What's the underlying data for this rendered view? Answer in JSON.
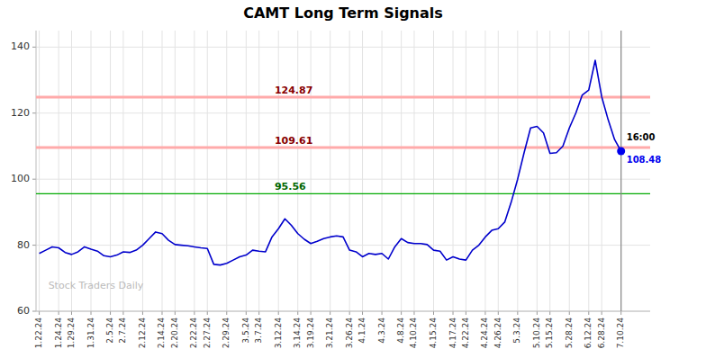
{
  "chart_data": {
    "type": "line",
    "title": "CAMT Long Term Signals",
    "color": "#0000cc",
    "ylim": [
      60,
      145
    ],
    "yticks": [
      60,
      80,
      100,
      120,
      140
    ],
    "grid": true,
    "categories": [
      "1.22.24",
      null,
      null,
      "1.24.24",
      null,
      "1.29.24",
      null,
      null,
      "1.31.24",
      null,
      null,
      "2.5.24",
      null,
      "2.7.24",
      null,
      null,
      "2.12.24",
      null,
      null,
      "2.14.24",
      null,
      "2.20.24",
      null,
      null,
      "2.22.24",
      null,
      "2.27.24",
      null,
      null,
      "2.29.24",
      null,
      null,
      "3.5.24",
      null,
      "3.7.24",
      null,
      null,
      "3.12.24",
      null,
      null,
      "3.14.24",
      null,
      "3.19.24",
      null,
      null,
      "3.21.24",
      null,
      null,
      "3.26.24",
      null,
      "4.1.24",
      null,
      null,
      "4.3.24",
      null,
      null,
      "4.8.24",
      null,
      "4.10.24",
      null,
      null,
      "4.15.24",
      null,
      null,
      "4.17.24",
      null,
      "4.22.24",
      null,
      null,
      "4.24.24",
      null,
      "4.26.24",
      null,
      null,
      "5.3.24",
      null,
      null,
      "5.10.24",
      null,
      "5.15.24",
      null,
      null,
      "5.28.24",
      null,
      null,
      "6.12.24",
      null,
      "6.28.24",
      null,
      null,
      "7.10.24"
    ],
    "values": [
      77.5,
      78.5,
      79.5,
      79.2,
      77.8,
      77.2,
      78.0,
      79.5,
      78.8,
      78.2,
      76.8,
      76.5,
      77.0,
      78.0,
      77.8,
      78.5,
      80.0,
      82.0,
      84.0,
      83.5,
      81.5,
      80.2,
      80.0,
      79.8,
      79.5,
      79.2,
      79.0,
      74.2,
      74.0,
      74.5,
      75.5,
      76.5,
      77.0,
      78.5,
      78.2,
      78.0,
      82.5,
      85.0,
      88.0,
      86.0,
      83.5,
      81.8,
      80.5,
      81.2,
      82.0,
      82.5,
      82.8,
      82.5,
      78.5,
      78.0,
      76.5,
      77.5,
      77.2,
      77.5,
      75.8,
      79.5,
      82.0,
      80.8,
      80.5,
      80.5,
      80.2,
      78.5,
      78.2,
      75.5,
      76.5,
      75.8,
      75.5,
      78.5,
      80.0,
      82.5,
      84.5,
      85.0,
      87.0,
      93.0,
      100.0,
      108.0,
      115.5,
      116.0,
      114.0,
      107.8,
      108.0,
      110.0,
      115.5,
      120.0,
      125.5,
      127.0,
      136.0,
      125.0,
      118.0,
      112.0,
      108.48
    ],
    "reference_lines": [
      {
        "value": 95.56,
        "label": "95.56",
        "color": "#00aa00",
        "label_color": "#006600"
      },
      {
        "value": 109.61,
        "label": "109.61",
        "color": "#ffaaaa",
        "label_color": "#880000"
      },
      {
        "value": 124.87,
        "label": "124.87",
        "color": "#ffaaaa",
        "label_color": "#880000"
      }
    ],
    "last_point": {
      "value": 108.48,
      "label": "108.48",
      "time_label": "16:00",
      "color": "#0000ee",
      "line_color": "#888888"
    },
    "watermark": "Stock Traders Daily"
  }
}
